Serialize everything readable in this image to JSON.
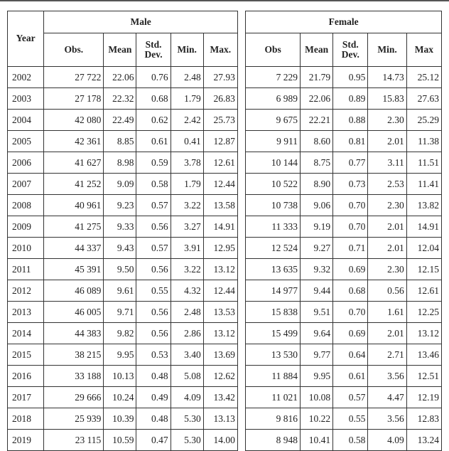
{
  "table": {
    "year_header": "Year",
    "group_male": "Male",
    "group_female": "Female",
    "male_cols": [
      "Obs.",
      "Mean",
      "Std. Dev.",
      "Min.",
      "Max."
    ],
    "female_cols": [
      "Obs",
      "Mean",
      "Std. Dev.",
      "Min.",
      "Max"
    ],
    "rows": [
      {
        "year": "2002",
        "m": [
          "27 722",
          "22.06",
          "0.76",
          "2.48",
          "27.93"
        ],
        "f": [
          "7 229",
          "21.79",
          "0.95",
          "14.73",
          "25.12"
        ]
      },
      {
        "year": "2003",
        "m": [
          "27 178",
          "22.32",
          "0.68",
          "1.79",
          "26.83"
        ],
        "f": [
          "6 989",
          "22.06",
          "0.89",
          "15.83",
          "27.63"
        ]
      },
      {
        "year": "2004",
        "m": [
          "42 080",
          "22.49",
          "0.62",
          "2.42",
          "25.73"
        ],
        "f": [
          "9 675",
          "22.21",
          "0.88",
          "2.30",
          "25.29"
        ]
      },
      {
        "year": "2005",
        "m": [
          "42 361",
          "8.85",
          "0.61",
          "0.41",
          "12.87"
        ],
        "f": [
          "9 911",
          "8.60",
          "0.81",
          "2.01",
          "11.38"
        ]
      },
      {
        "year": "2006",
        "m": [
          "41 627",
          "8.98",
          "0.59",
          "3.78",
          "12.61"
        ],
        "f": [
          "10 144",
          "8.75",
          "0.77",
          "3.11",
          "11.51"
        ]
      },
      {
        "year": "2007",
        "m": [
          "41 252",
          "9.09",
          "0.58",
          "1.79",
          "12.44"
        ],
        "f": [
          "10 522",
          "8.90",
          "0.73",
          "2.53",
          "11.41"
        ]
      },
      {
        "year": "2008",
        "m": [
          "40 961",
          "9.23",
          "0.57",
          "3.22",
          "13.58"
        ],
        "f": [
          "10 738",
          "9.06",
          "0.70",
          "2.30",
          "13.82"
        ]
      },
      {
        "year": "2009",
        "m": [
          "41 275",
          "9.33",
          "0.56",
          "3.27",
          "14.91"
        ],
        "f": [
          "11 333",
          "9.19",
          "0.70",
          "2.01",
          "14.91"
        ]
      },
      {
        "year": "2010",
        "m": [
          "44 337",
          "9.43",
          "0.57",
          "3.91",
          "12.95"
        ],
        "f": [
          "12 524",
          "9.27",
          "0.71",
          "2.01",
          "12.04"
        ]
      },
      {
        "year": "2011",
        "m": [
          "45 391",
          "9.50",
          "0.56",
          "3.22",
          "13.12"
        ],
        "f": [
          "13 635",
          "9.32",
          "0.69",
          "2.30",
          "12.15"
        ]
      },
      {
        "year": "2012",
        "m": [
          "46 089",
          "9.61",
          "0.55",
          "4.32",
          "12.44"
        ],
        "f": [
          "14 977",
          "9.44",
          "0.68",
          "0.56",
          "12.61"
        ]
      },
      {
        "year": "2013",
        "m": [
          "46 005",
          "9.71",
          "0.56",
          "2.48",
          "13.53"
        ],
        "f": [
          "15 838",
          "9.51",
          "0.70",
          "1.61",
          "12.25"
        ]
      },
      {
        "year": "2014",
        "m": [
          "44 383",
          "9.82",
          "0.56",
          "2.86",
          "13.12"
        ],
        "f": [
          "15 499",
          "9.64",
          "0.69",
          "2.01",
          "13.12"
        ]
      },
      {
        "year": "2015",
        "m": [
          "38 215",
          "9.95",
          "0.53",
          "3.40",
          "13.69"
        ],
        "f": [
          "13 530",
          "9.77",
          "0.64",
          "2.71",
          "13.46"
        ]
      },
      {
        "year": "2016",
        "m": [
          "33 188",
          "10.13",
          "0.48",
          "5.08",
          "12.62"
        ],
        "f": [
          "11 884",
          "9.95",
          "0.61",
          "3.56",
          "12.51"
        ]
      },
      {
        "year": "2017",
        "m": [
          "29 666",
          "10.24",
          "0.49",
          "4.09",
          "13.42"
        ],
        "f": [
          "11 021",
          "10.08",
          "0.57",
          "4.47",
          "12.19"
        ]
      },
      {
        "year": "2018",
        "m": [
          "25 939",
          "10.39",
          "0.48",
          "5.30",
          "13.13"
        ],
        "f": [
          "9 816",
          "10.22",
          "0.55",
          "3.56",
          "12.83"
        ]
      },
      {
        "year": "2019",
        "m": [
          "23 115",
          "10.59",
          "0.47",
          "5.30",
          "14.00"
        ],
        "f": [
          "8 948",
          "10.41",
          "0.58",
          "4.09",
          "13.24"
        ]
      }
    ]
  }
}
